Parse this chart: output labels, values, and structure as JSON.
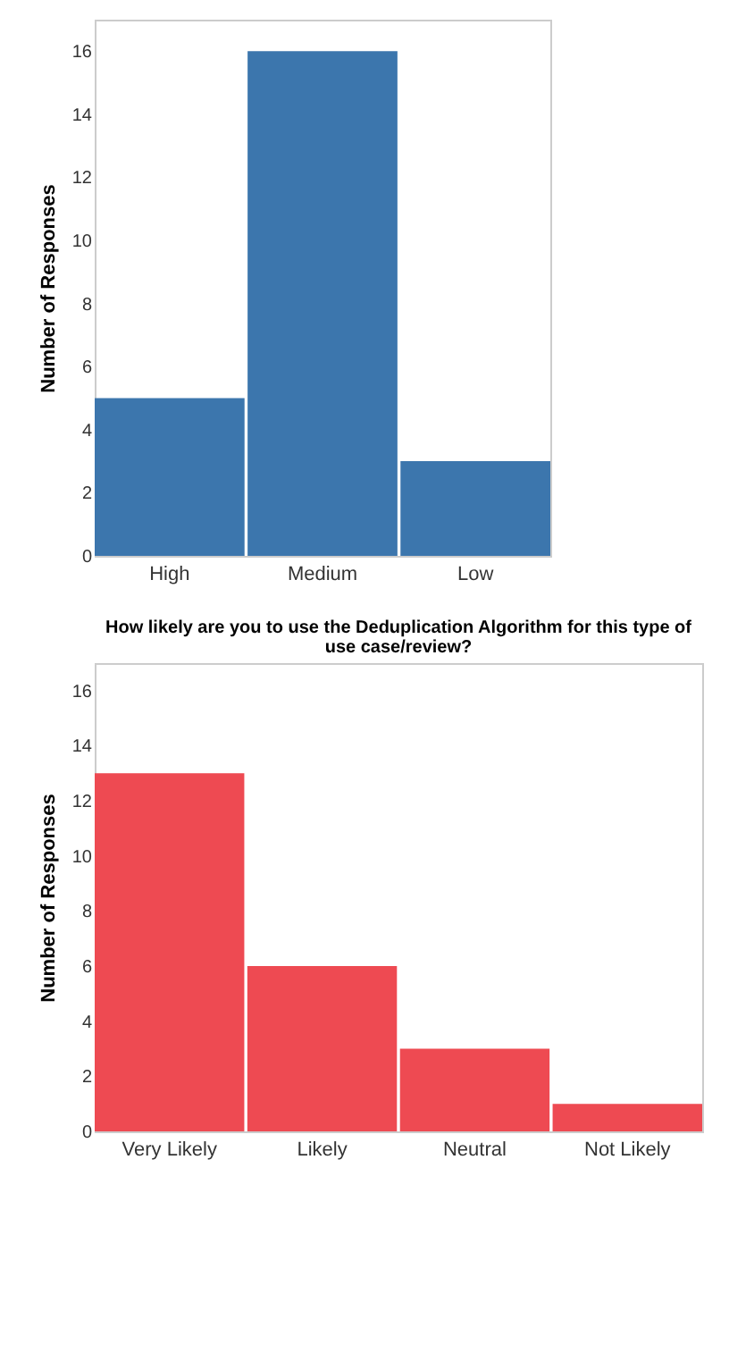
{
  "chart_data": [
    {
      "type": "bar",
      "ylabel": "Number of Responses",
      "categories": [
        "High",
        "Medium",
        "Low"
      ],
      "values": [
        5,
        16,
        3
      ],
      "color": "#3c76ad",
      "ylim": [
        0,
        17
      ],
      "yticks": [
        0,
        2,
        4,
        6,
        8,
        10,
        12,
        14,
        16
      ],
      "grid": false,
      "legend": false
    },
    {
      "type": "bar",
      "title": "How likely are you to use the Deduplication Algorithm for this type of use case/review?",
      "ylabel": "Number of Responses",
      "categories": [
        "Very Likely",
        "Likely",
        "Neutral",
        "Not Likely"
      ],
      "values": [
        13,
        6,
        3,
        1
      ],
      "color": "#ee4a52",
      "ylim": [
        0,
        17
      ],
      "yticks": [
        0,
        2,
        4,
        6,
        8,
        10,
        12,
        14,
        16
      ],
      "grid": false,
      "legend": false
    }
  ]
}
